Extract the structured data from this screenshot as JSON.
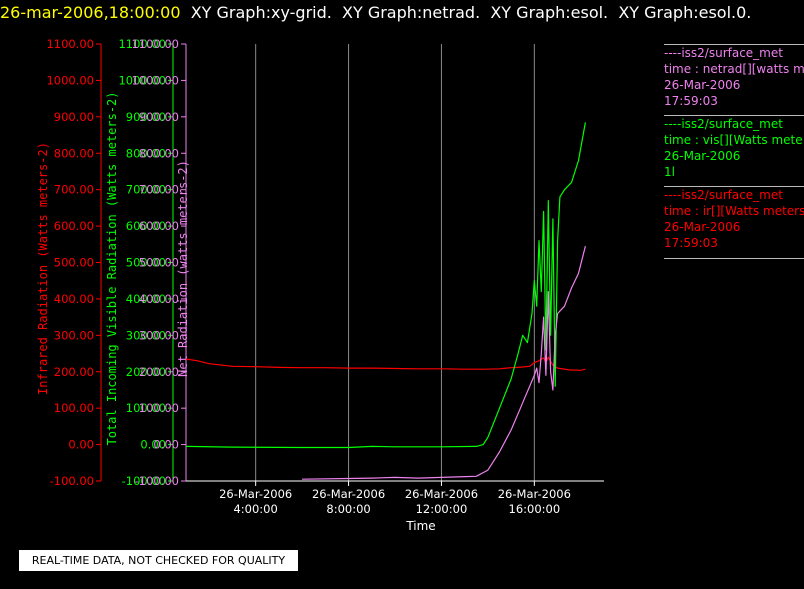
{
  "header": {
    "timestamp": "26-mar-2006,18:00:00",
    "titles": [
      "XY Graph:xy-grid.",
      "XY Graph:netrad.",
      "XY Graph:esol.",
      "XY Graph:esol.0."
    ]
  },
  "legend": [
    {
      "source": "----iss2/surface_met",
      "var": "time : netrad[][watts met",
      "date": "26-Mar-2006",
      "time": "17:59:03",
      "color": "#ee82ee"
    },
    {
      "source": "----iss2/surface_met",
      "var": "time : vis[][Watts mete",
      "date": "26-Mar-2006",
      "time": "1l",
      "color": "#00ff00"
    },
    {
      "source": "----iss2/surface_met",
      "var": "time : ir[][Watts meters",
      "date": "26-Mar-2006",
      "time": "17:59:03",
      "color": "#ff0000"
    }
  ],
  "note": "REAL-TIME DATA, NOT CHECKED FOR QUALITY",
  "chart_data": {
    "type": "line",
    "xlabel": "Time",
    "xlim_hours": [
      1.0,
      19.0
    ],
    "x_ticks": [
      {
        "h": 4,
        "date": "26-Mar-2006",
        "time": "4:00:00"
      },
      {
        "h": 8,
        "date": "26-Mar-2006",
        "time": "8:00:00"
      },
      {
        "h": 12,
        "date": "26-Mar-2006",
        "time": "12:00:00"
      },
      {
        "h": 16,
        "date": "26-Mar-2006",
        "time": "16:00:00"
      }
    ],
    "y_ticks": [
      "1100.00",
      "1000.00",
      "900.00",
      "800.00",
      "700.00",
      "600.00",
      "500.00",
      "400.00",
      "300.00",
      "200.00",
      "100.00",
      "0.00",
      "-100.00"
    ],
    "ylim": [
      -100,
      1100
    ],
    "axes": [
      {
        "label": "Infrared Radiation (Watts meters-2)",
        "color": "#ff0000"
      },
      {
        "label": "Total Incoming Visible Radiation (Watts meters-2)",
        "color": "#00ff00"
      },
      {
        "label": "Net Radiation (watts meters-2)",
        "color": "#ee82ee"
      }
    ],
    "grid": "vertical",
    "series": [
      {
        "name": "time : ir[][Watts meters",
        "color": "#ff0000",
        "points": [
          [
            1.0,
            235
          ],
          [
            1.5,
            230
          ],
          [
            2.0,
            222
          ],
          [
            3.0,
            215
          ],
          [
            4.0,
            214
          ],
          [
            5.0,
            212
          ],
          [
            6.0,
            211
          ],
          [
            7.0,
            211
          ],
          [
            8.0,
            210
          ],
          [
            9.0,
            210
          ],
          [
            10.0,
            209
          ],
          [
            11.0,
            208
          ],
          [
            12.0,
            208
          ],
          [
            13.0,
            207
          ],
          [
            14.0,
            207
          ],
          [
            14.5,
            208
          ],
          [
            15.0,
            211
          ],
          [
            15.5,
            213
          ],
          [
            15.8,
            215
          ],
          [
            16.0,
            225
          ],
          [
            16.2,
            230
          ],
          [
            16.4,
            238
          ],
          [
            16.5,
            225
          ],
          [
            16.6,
            240
          ],
          [
            16.8,
            218
          ],
          [
            17.0,
            210
          ],
          [
            17.5,
            205
          ],
          [
            18.0,
            204
          ],
          [
            18.2,
            207
          ]
        ]
      },
      {
        "name": "time : vis[][Watts mete",
        "color": "#00ff00",
        "points": [
          [
            1.0,
            -5
          ],
          [
            3.0,
            -7
          ],
          [
            6.0,
            -8
          ],
          [
            8.0,
            -8
          ],
          [
            9.0,
            -5
          ],
          [
            10.0,
            -6
          ],
          [
            12.0,
            -6
          ],
          [
            13.5,
            -5
          ],
          [
            13.8,
            0
          ],
          [
            14.0,
            20
          ],
          [
            14.5,
            100
          ],
          [
            15.0,
            180
          ],
          [
            15.3,
            250
          ],
          [
            15.5,
            300
          ],
          [
            15.7,
            280
          ],
          [
            15.9,
            360
          ],
          [
            16.0,
            450
          ],
          [
            16.1,
            380
          ],
          [
            16.2,
            560
          ],
          [
            16.3,
            420
          ],
          [
            16.4,
            640
          ],
          [
            16.5,
            260
          ],
          [
            16.6,
            670
          ],
          [
            16.7,
            300
          ],
          [
            16.8,
            620
          ],
          [
            16.9,
            160
          ],
          [
            17.0,
            560
          ],
          [
            17.1,
            680
          ],
          [
            17.3,
            700
          ],
          [
            17.6,
            720
          ],
          [
            17.9,
            780
          ],
          [
            18.1,
            850
          ],
          [
            18.2,
            885
          ]
        ]
      },
      {
        "name": "time : netrad[][watts met",
        "color": "#ee82ee",
        "points": [
          [
            6.0,
            -95
          ],
          [
            8.0,
            -93
          ],
          [
            9.0,
            -92
          ],
          [
            10.0,
            -90
          ],
          [
            11.0,
            -92
          ],
          [
            12.0,
            -90
          ],
          [
            13.0,
            -88
          ],
          [
            13.5,
            -87
          ],
          [
            14.0,
            -70
          ],
          [
            14.5,
            -20
          ],
          [
            15.0,
            40
          ],
          [
            15.4,
            100
          ],
          [
            15.6,
            130
          ],
          [
            15.8,
            160
          ],
          [
            16.0,
            190
          ],
          [
            16.1,
            210
          ],
          [
            16.2,
            170
          ],
          [
            16.3,
            250
          ],
          [
            16.4,
            350
          ],
          [
            16.5,
            190
          ],
          [
            16.6,
            420
          ],
          [
            16.7,
            200
          ],
          [
            16.8,
            150
          ],
          [
            16.9,
            300
          ],
          [
            17.0,
            360
          ],
          [
            17.3,
            380
          ],
          [
            17.6,
            430
          ],
          [
            17.9,
            470
          ],
          [
            18.1,
            520
          ],
          [
            18.2,
            545
          ]
        ]
      }
    ]
  }
}
